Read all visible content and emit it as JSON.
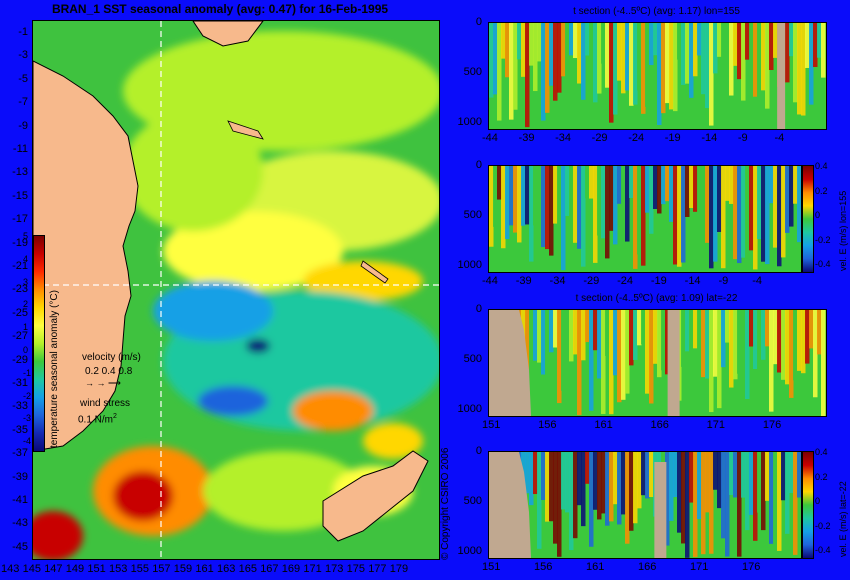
{
  "main_title": "BRAN_1 SST seasonal anomaly (avg: 0.47) for 16-Feb-1995",
  "map": {
    "lat_labels": [
      "-1",
      "-3",
      "-5",
      "-7",
      "-9",
      "-11",
      "-13",
      "-15",
      "-17",
      "-19",
      "-21",
      "-23",
      "-25",
      "-27",
      "-29",
      "-31",
      "-33",
      "-35",
      "-37",
      "-39",
      "-41",
      "-43",
      "-45"
    ],
    "lon_labels": [
      "143",
      "145",
      "147",
      "149",
      "151",
      "153",
      "155",
      "157",
      "159",
      "161",
      "163",
      "165",
      "167",
      "169",
      "171",
      "173",
      "175",
      "177",
      "179"
    ],
    "colorbar": {
      "label": "temperature seasonal anomaly (°C)",
      "ticks": [
        "5",
        "4",
        "3",
        "2",
        "1",
        "0",
        "-1",
        "-2",
        "-3",
        "-4"
      ],
      "colors": [
        "#7a0000",
        "#c80000",
        "#ff2a00",
        "#ff8c00",
        "#ffd700",
        "#ffff40",
        "#b4f02a",
        "#3cc83c",
        "#1ec8a0",
        "#14a0e6",
        "#1e64dc",
        "#1428b4",
        "#0a0878"
      ]
    },
    "velocity_legend": {
      "title": "velocity (m/s)",
      "scale": "0.2 0.4 0.8"
    },
    "wind_legend": {
      "title": "wind stress",
      "value": "0.1 N/m",
      "exp": "2"
    },
    "copyright": "© Copyright CSIRO 2006",
    "section_lon": 155,
    "section_lat": -22,
    "land_color": "#f7b98c"
  },
  "panels": [
    {
      "title": "t section (-4..5ºC) (avg: 1.17) lon=155",
      "y_ticks": [
        "0",
        "500",
        "1000"
      ],
      "x_ticks": [
        "-44",
        "-39",
        "-34",
        "-29",
        "-24",
        "-19",
        "-14",
        "-9",
        "-4"
      ]
    },
    {
      "title": "",
      "y_ticks": [
        "0",
        "500",
        "1000"
      ],
      "x_ticks": [
        "-44",
        "-39",
        "-34",
        "-29",
        "-24",
        "-19",
        "-14",
        "-9",
        "-4"
      ],
      "colorbar": {
        "ticks": [
          "0.4",
          "0.2",
          "0",
          "-0.2",
          "-0.4"
        ],
        "label": "vel. E (m/s) lon=155"
      }
    },
    {
      "title": "t section (-4..5ºC) (avg: 1.09) lat=-22",
      "y_ticks": [
        "0",
        "500",
        "1000"
      ],
      "x_ticks": [
        "151",
        "156",
        "161",
        "166",
        "171",
        "176"
      ]
    },
    {
      "title": "",
      "y_ticks": [
        "0",
        "500",
        "1000"
      ],
      "x_ticks": [
        "151",
        "156",
        "161",
        "166",
        "171",
        "176"
      ],
      "colorbar": {
        "ticks": [
          "0.4",
          "0.2",
          "0",
          "-0.2",
          "-0.4"
        ],
        "label": "vel. E (m/s) lat=-22"
      }
    }
  ]
}
